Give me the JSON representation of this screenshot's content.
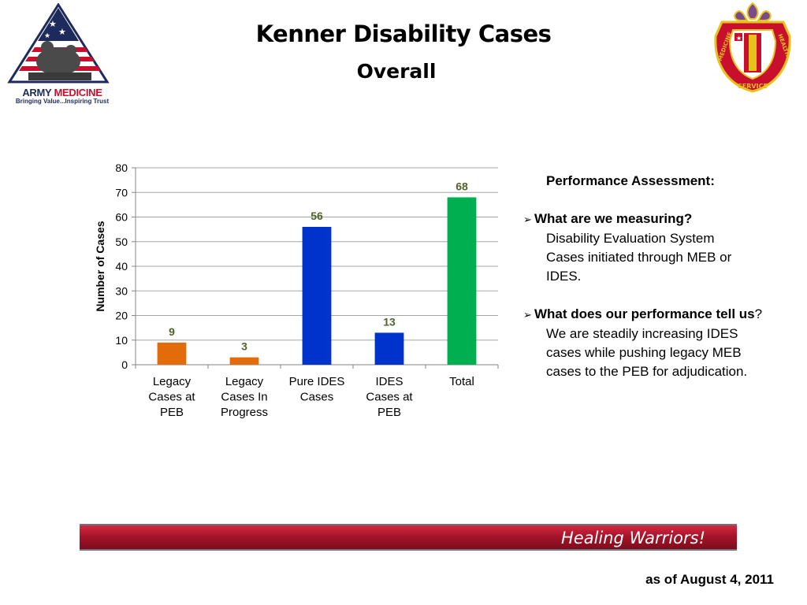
{
  "slide": {
    "title": "Kenner Disability Cases",
    "subtitle": "Overall",
    "left_logo": {
      "icon": "army-medicine-logo-icon",
      "name": "ARMY",
      "name_accent": "MEDICINE",
      "tagline": "Bringing Value...Inspiring Trust"
    },
    "right_logo": {
      "icon": "medical-service-crest-icon",
      "words": [
        "MEDICINE",
        "HEALTH",
        "SERVICE"
      ]
    },
    "banner": {
      "text": "Healing Warriors!",
      "colors": [
        "#d42a41",
        "#7e0c1d"
      ]
    },
    "as_of": "as of August 4, 2011"
  },
  "chart_data": {
    "type": "bar",
    "title": "",
    "xlabel": "",
    "ylabel": "Number of Cases",
    "ylim": [
      0,
      80
    ],
    "yticks": [
      0,
      10,
      20,
      30,
      40,
      50,
      60,
      70,
      80
    ],
    "grid": true,
    "categories": [
      "Legacy Cases at PEB",
      "Legacy Cases In Progress",
      "Pure IDES Cases",
      "IDES Cases at PEB",
      "Total"
    ],
    "category_lines": [
      [
        "Legacy",
        "Cases at",
        "PEB"
      ],
      [
        "Legacy",
        "Cases In",
        "Progress"
      ],
      [
        "Pure IDES",
        "Cases"
      ],
      [
        "IDES",
        "Cases at",
        "PEB"
      ],
      [
        "Total"
      ]
    ],
    "values": [
      9,
      3,
      56,
      13,
      68
    ],
    "bar_colors": [
      "#e36c0a",
      "#e36c0a",
      "#0033cc",
      "#0033cc",
      "#00b050"
    ],
    "data_label_color": "#4f6228"
  },
  "assessment": {
    "heading": "Performance Assessment:",
    "items": [
      {
        "question": "What are we measuring?",
        "question_after": "",
        "answer_lines": [
          "Disability Evaluation System",
          "Cases initiated through MEB or",
          "IDES."
        ]
      },
      {
        "question": "What does our performance tell us",
        "question_after": "?",
        "answer_lines": [
          "We are steadily increasing IDES",
          "cases while pushing legacy MEB",
          "cases to the PEB for adjudication."
        ]
      }
    ]
  }
}
